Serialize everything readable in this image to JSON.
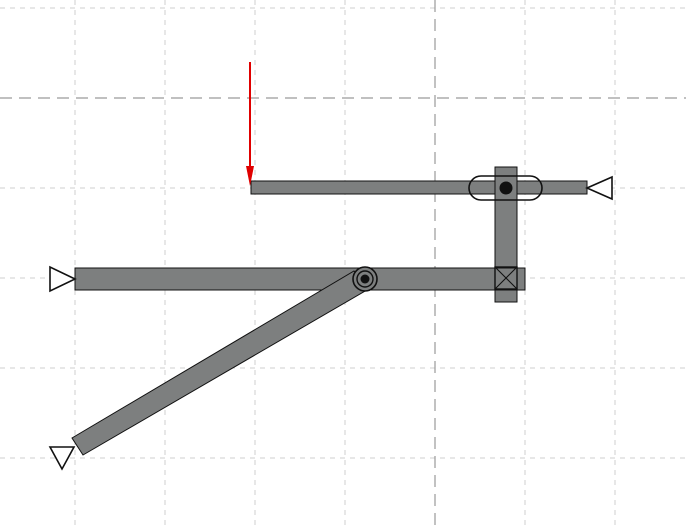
{
  "diagram": {
    "description_free": true,
    "colors": {
      "beam": "#7d7f7f",
      "outline": "#111111",
      "load": "#e00000",
      "grid": "#cfcfcf",
      "axis": "#9a9a9a",
      "background": "#ffffff"
    },
    "icons": [
      "pin-support-icon",
      "hinge-icon",
      "slot-joint-icon",
      "fixed-joint-icon",
      "load-arrow-icon"
    ]
  }
}
